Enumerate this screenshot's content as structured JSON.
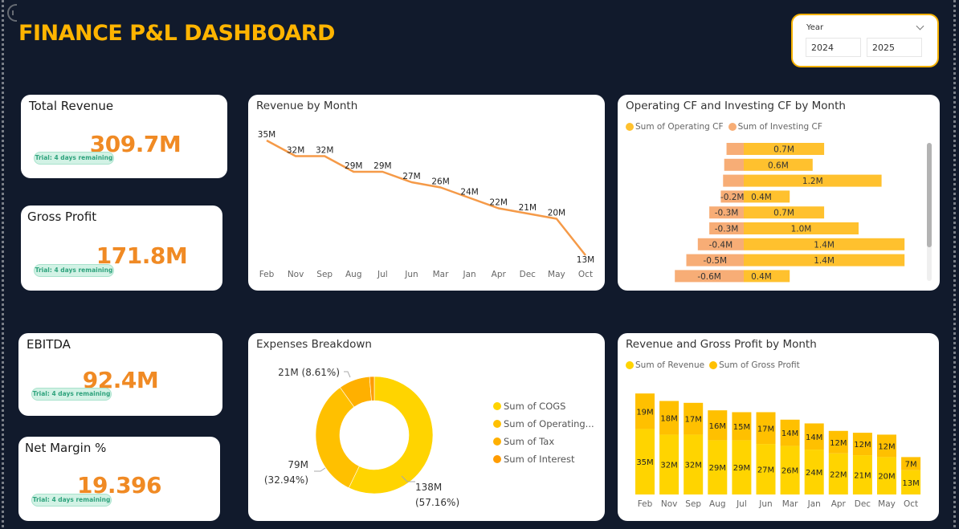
{
  "header": {
    "title": "FINANCE P&L DASHBOARD"
  },
  "slicer": {
    "label": "Year",
    "values": [
      "2024",
      "2025"
    ]
  },
  "kpis": [
    {
      "title": "Total Revenue",
      "value": "309.7M",
      "badge": "Trial: 4 days remaining"
    },
    {
      "title": "Gross Profit",
      "value": "171.8M",
      "badge": "Trial: 4 days remaining"
    },
    {
      "title": "EBITDA",
      "value": "92.4M",
      "badge": "Trial: 4 days remaining"
    },
    {
      "title": "Net Margin %",
      "value": "19.396",
      "badge": "Trial: 4 days remaining"
    }
  ],
  "colors": {
    "title": "#ffb400",
    "kpi_value": "#f08a24",
    "line": "#f59a48",
    "operating_cf": "#ffc12e",
    "investing_cf": "#f7ad76",
    "revenue": "#ffd400",
    "gross_profit": "#ffc000",
    "cogs": "#ffd400",
    "operating_exp": "#ffc000",
    "tax": "#ffb000",
    "interest": "#ff9c00"
  },
  "chart_data": [
    {
      "id": "revenue_by_month",
      "type": "line",
      "title": "Revenue by Month",
      "categories": [
        "Feb",
        "Nov",
        "Sep",
        "Aug",
        "Jul",
        "Jun",
        "Mar",
        "Jan",
        "Apr",
        "Dec",
        "May",
        "Oct"
      ],
      "values": [
        35,
        32,
        32,
        29,
        29,
        27,
        26,
        24,
        22,
        21,
        20,
        13
      ],
      "labels": [
        "35M",
        "32M",
        "32M",
        "29M",
        "29M",
        "27M",
        "26M",
        "24M",
        "22M",
        "21M",
        "20M",
        "13M"
      ],
      "unit": "M",
      "xlabel": "",
      "ylabel": ""
    },
    {
      "id": "cf_by_month",
      "type": "bar",
      "orientation": "horizontal",
      "title": "Operating CF and Investing CF by Month",
      "legend": [
        "Sum of Operating CF",
        "Sum of Investing CF"
      ],
      "legend_position": "top-left",
      "series": [
        {
          "name": "Sum of Operating CF",
          "values": [
            0.7,
            0.6,
            1.2,
            0.4,
            0.7,
            1.0,
            1.4,
            1.4,
            0.4
          ],
          "labels": [
            "0.7M",
            "0.6M",
            "1.2M",
            "0.4M",
            "0.7M",
            "1.0M",
            "1.4M",
            "1.4M",
            "0.4M"
          ]
        },
        {
          "name": "Sum of Investing CF",
          "values": [
            -0.15,
            -0.17,
            -0.18,
            -0.2,
            -0.3,
            -0.3,
            -0.4,
            -0.5,
            -0.6
          ],
          "labels": [
            "",
            "",
            "",
            "-0.2M",
            "-0.3M",
            "-0.3M",
            "-0.4M",
            "-0.5M",
            "-0.6M"
          ]
        }
      ],
      "unit": "M"
    },
    {
      "id": "expenses_breakdown",
      "type": "pie",
      "title": "Expenses Breakdown",
      "legend_position": "right",
      "slices": [
        {
          "name": "Sum of COGS",
          "legend_label": "Sum of COGS",
          "value": 138,
          "percent": 57.16,
          "label": "138M",
          "pct_label": "(57.16%)"
        },
        {
          "name": "Sum of Operating Expenses",
          "legend_label": "Sum of Operating...",
          "value": 79,
          "percent": 32.94,
          "label": "79M",
          "pct_label": "(32.94%)"
        },
        {
          "name": "Sum of Tax",
          "legend_label": "Sum of Tax",
          "value": 21,
          "percent": 8.61,
          "label": "21M (8.61%)",
          "pct_label": ""
        },
        {
          "name": "Sum of Interest",
          "legend_label": "Sum of Interest",
          "value": 3,
          "percent": 1.29,
          "label": "",
          "pct_label": ""
        }
      ]
    },
    {
      "id": "revenue_gp_by_month",
      "type": "bar",
      "stacked": true,
      "title": "Revenue and Gross Profit by Month",
      "legend": [
        "Sum of Revenue",
        "Sum of Gross Profit"
      ],
      "legend_position": "top-left",
      "categories": [
        "Feb",
        "Nov",
        "Sep",
        "Aug",
        "Jul",
        "Jun",
        "Mar",
        "Jan",
        "Apr",
        "Dec",
        "May",
        "Oct"
      ],
      "series": [
        {
          "name": "Sum of Revenue",
          "values": [
            35,
            32,
            32,
            29,
            29,
            27,
            26,
            24,
            22,
            21,
            20,
            13
          ]
        },
        {
          "name": "Sum of Gross Profit",
          "values": [
            19,
            18,
            17,
            16,
            15,
            17,
            14,
            14,
            12,
            12,
            12,
            7
          ]
        }
      ],
      "unit": "M"
    }
  ]
}
